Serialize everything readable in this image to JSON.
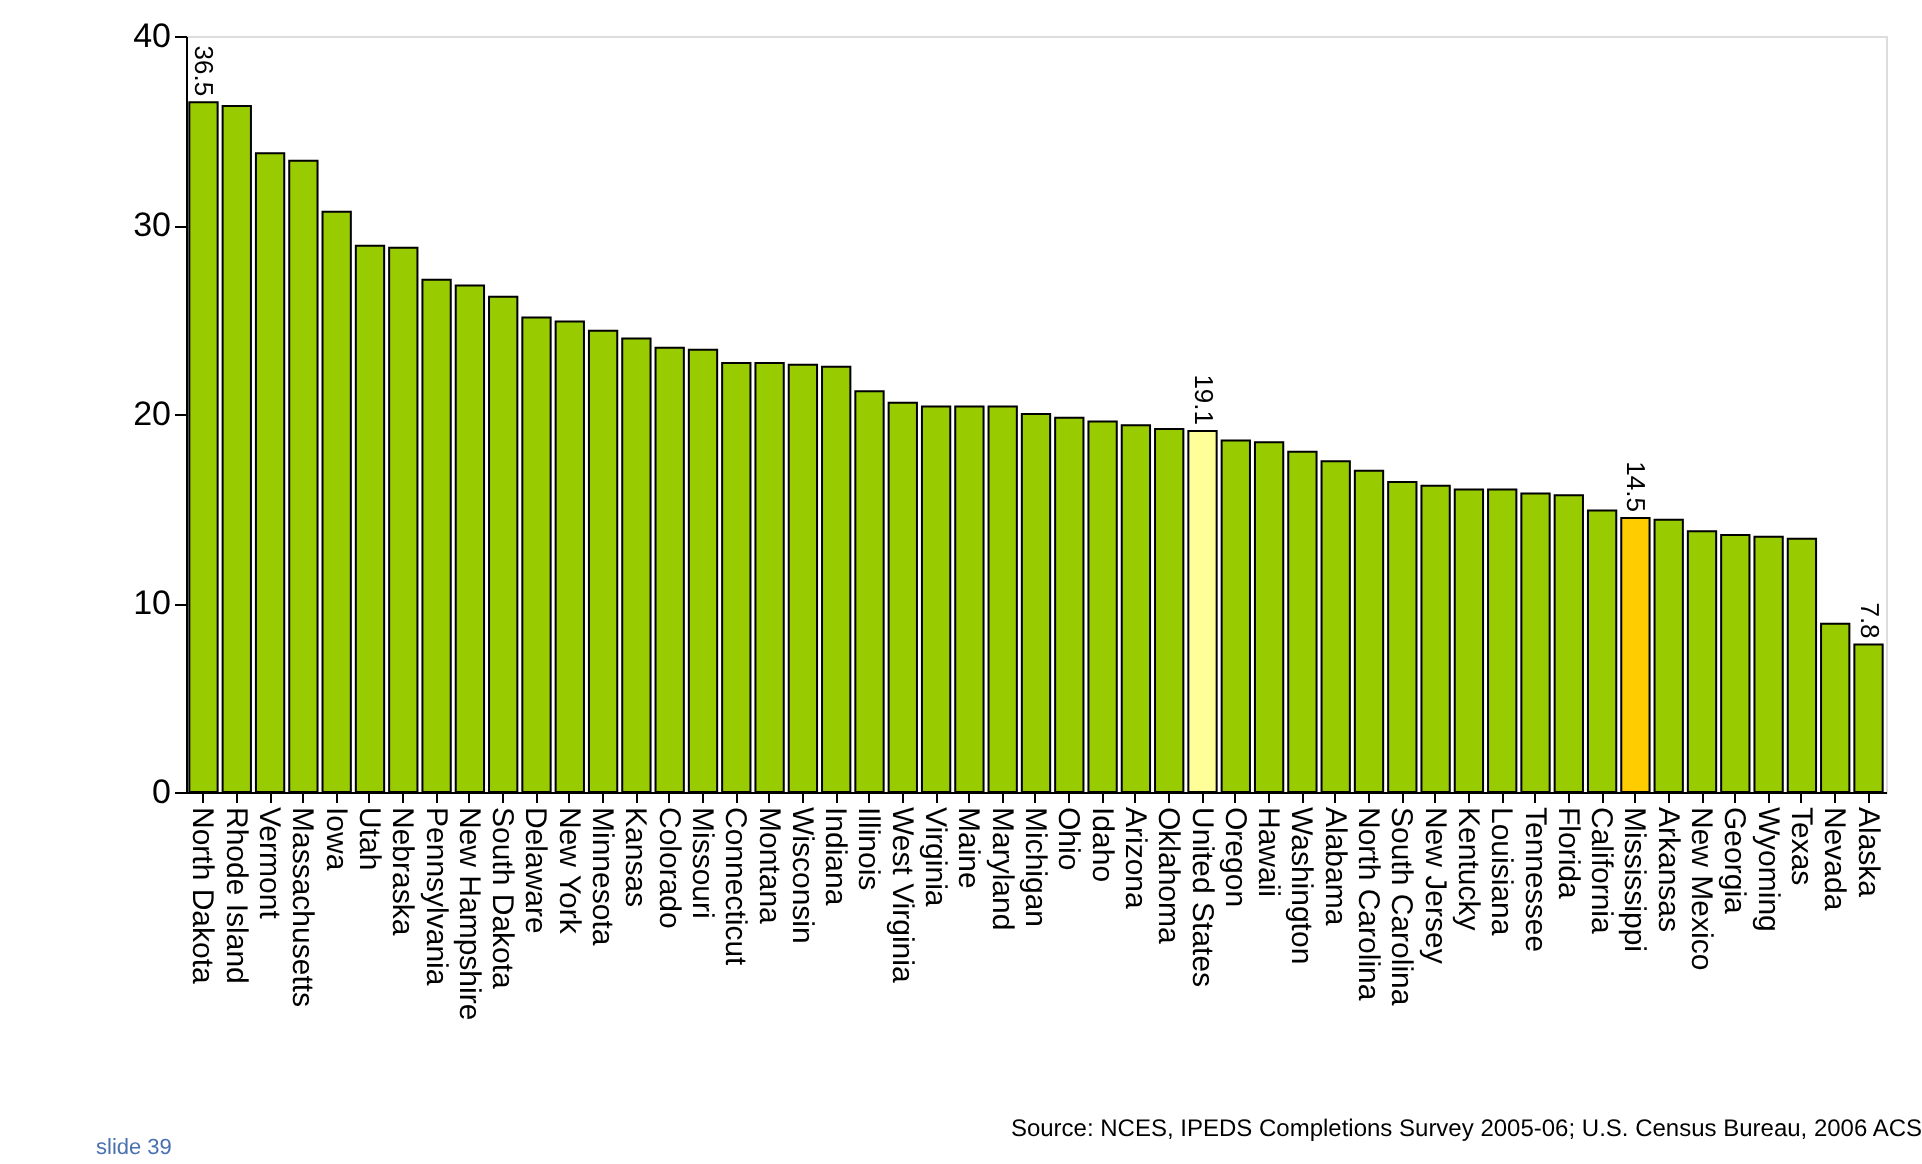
{
  "chart_data": {
    "type": "bar",
    "categories": [
      "North Dakota",
      "Rhode Island",
      "Vermont",
      "Massachusetts",
      "Iowa",
      "Utah",
      "Nebraska",
      "Pennsylvania",
      "New Hampshire",
      "South Dakota",
      "Delaware",
      "New York",
      "Minnesota",
      "Kansas",
      "Colorado",
      "Missouri",
      "Connecticut",
      "Montana",
      "Wisconsin",
      "Indiana",
      "Illinois",
      "West Virginia",
      "Virginia",
      "Maine",
      "Maryland",
      "Michigan",
      "Ohio",
      "Idaho",
      "Arizona",
      "Oklahoma",
      "United States",
      "Oregon",
      "Hawaii",
      "Washington",
      "Alabama",
      "North Carolina",
      "South Carolina",
      "New Jersey",
      "Kentucky",
      "Louisiana",
      "Tennessee",
      "Florida",
      "California",
      "Mississippi",
      "Arkansas",
      "New Mexico",
      "Georgia",
      "Wyoming",
      "Texas",
      "Nevada",
      "Alaska"
    ],
    "values": [
      36.5,
      36.3,
      33.8,
      33.4,
      30.7,
      28.9,
      28.8,
      27.1,
      26.8,
      26.2,
      25.1,
      24.9,
      24.4,
      24.0,
      23.5,
      23.4,
      22.7,
      22.7,
      22.6,
      22.5,
      21.2,
      20.6,
      20.4,
      20.4,
      20.4,
      20.0,
      19.8,
      19.6,
      19.4,
      19.2,
      19.1,
      18.6,
      18.5,
      18.0,
      17.5,
      17.0,
      16.4,
      16.2,
      16.0,
      16.0,
      15.8,
      15.7,
      14.9,
      14.5,
      14.4,
      13.8,
      13.6,
      13.5,
      13.4,
      8.9,
      7.8
    ],
    "colors": [
      "#99cc00",
      "#99cc00",
      "#99cc00",
      "#99cc00",
      "#99cc00",
      "#99cc00",
      "#99cc00",
      "#99cc00",
      "#99cc00",
      "#99cc00",
      "#99cc00",
      "#99cc00",
      "#99cc00",
      "#99cc00",
      "#99cc00",
      "#99cc00",
      "#99cc00",
      "#99cc00",
      "#99cc00",
      "#99cc00",
      "#99cc00",
      "#99cc00",
      "#99cc00",
      "#99cc00",
      "#99cc00",
      "#99cc00",
      "#99cc00",
      "#99cc00",
      "#99cc00",
      "#99cc00",
      "#ffff99",
      "#99cc00",
      "#99cc00",
      "#99cc00",
      "#99cc00",
      "#99cc00",
      "#99cc00",
      "#99cc00",
      "#99cc00",
      "#99cc00",
      "#99cc00",
      "#99cc00",
      "#99cc00",
      "#ffcc00",
      "#99cc00",
      "#99cc00",
      "#99cc00",
      "#99cc00",
      "#99cc00",
      "#99cc00",
      "#99cc00"
    ],
    "value_labels": [
      "36.5",
      null,
      null,
      null,
      null,
      null,
      null,
      null,
      null,
      null,
      null,
      null,
      null,
      null,
      null,
      null,
      null,
      null,
      null,
      null,
      null,
      null,
      null,
      null,
      null,
      null,
      null,
      null,
      null,
      null,
      "19.1",
      null,
      null,
      null,
      null,
      null,
      null,
      null,
      null,
      null,
      null,
      null,
      null,
      "14.5",
      null,
      null,
      null,
      null,
      null,
      null,
      "7.8"
    ],
    "ylim": [
      0,
      40
    ],
    "yticks": [
      0,
      10,
      20,
      30,
      40
    ],
    "grid": false,
    "annotations": [
      "Source: NCES, IPEDS Completions Survey 2005-06; U.S. Census Bureau, 2006 ACS",
      "slide 39"
    ]
  }
}
